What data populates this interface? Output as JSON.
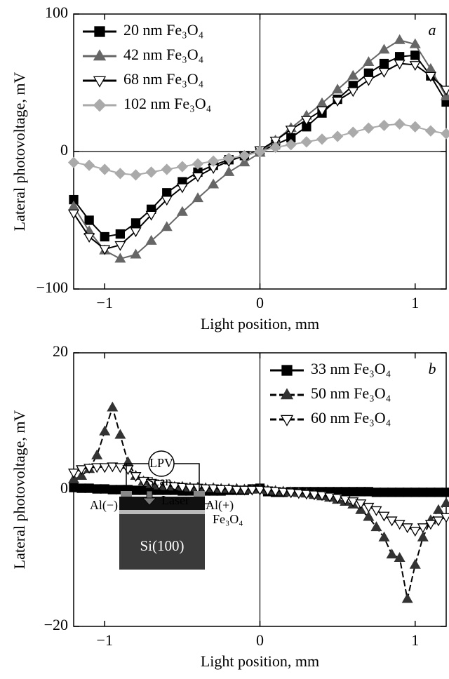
{
  "chart_data": [
    {
      "type": "line",
      "panel_label": "a",
      "xlabel": "Light position, mm",
      "ylabel": "Lateral photovoltage, mV",
      "xlim": [
        -1.2,
        1.2
      ],
      "ylim": [
        -100,
        100
      ],
      "xticks": [
        {
          "value": -1,
          "label": "−1"
        },
        0,
        1
      ],
      "yticks": [
        {
          "value": -100,
          "label": "−100"
        },
        0,
        100
      ],
      "zero_lines": {
        "x": true,
        "y": true
      },
      "legend": "upper left",
      "x": [
        -1.2,
        -1.1,
        -1,
        -0.9,
        -0.8,
        -0.7,
        -0.6,
        -0.5,
        -0.4,
        -0.3,
        -0.2,
        -0.1,
        0,
        0.1,
        0.2,
        0.3,
        0.4,
        0.5,
        0.6,
        0.7,
        0.8,
        0.9,
        1,
        1.1,
        1.2
      ],
      "series": [
        {
          "name": "20 nm Fe₃O₄",
          "color": "#000000",
          "marker": "square",
          "marker_fill": "#000000",
          "dash": "solid",
          "values": [
            -35,
            -50,
            -62,
            -60,
            -52,
            -42,
            -30,
            -22,
            -15,
            -10,
            -6,
            -3,
            0,
            5,
            10,
            18,
            28,
            38,
            48,
            57,
            64,
            69,
            70,
            55,
            36
          ]
        },
        {
          "name": "42 nm Fe₃O₄",
          "color": "#666666",
          "marker": "triangle-up",
          "marker_fill": "#666666",
          "dash": "solid",
          "values": [
            -40,
            -58,
            -72,
            -78,
            -75,
            -65,
            -55,
            -44,
            -34,
            -24,
            -15,
            -8,
            -1,
            8,
            17,
            26,
            35,
            45,
            55,
            65,
            74,
            81,
            78,
            60,
            40
          ]
        },
        {
          "name": "68 nm Fe₃O₄",
          "color": "#000000",
          "marker": "triangle-down",
          "marker_fill": "#ffffff",
          "dash": "solid",
          "values": [
            -45,
            -62,
            -71,
            -68,
            -58,
            -46,
            -35,
            -26,
            -18,
            -12,
            -7,
            -3,
            1,
            8,
            16,
            23,
            30,
            37,
            44,
            52,
            58,
            64,
            63,
            55,
            45
          ]
        },
        {
          "name": "102 nm Fe₃O₄",
          "color": "#aaaaaa",
          "marker": "diamond",
          "marker_fill": "#aaaaaa",
          "dash": "solid",
          "values": [
            -8,
            -10,
            -13,
            -16,
            -17,
            -15,
            -13,
            -11,
            -9,
            -7,
            -5,
            -3,
            0,
            3,
            5,
            7,
            9,
            11,
            14,
            17,
            19,
            20,
            18,
            15,
            13
          ]
        }
      ]
    },
    {
      "type": "line",
      "panel_label": "b",
      "xlabel": "Light position, mm",
      "ylabel": "Lateral photovoltage, mV",
      "xlim": [
        -1.2,
        1.2
      ],
      "ylim": [
        -20,
        20
      ],
      "xticks": [
        {
          "value": -1,
          "label": "−1"
        },
        0,
        1
      ],
      "yticks": [
        {
          "value": -20,
          "label": "−20"
        },
        0,
        20
      ],
      "zero_lines": {
        "x": true,
        "y": false
      },
      "legend": "upper right",
      "x": [
        -1.2,
        -1.15,
        -1.1,
        -1.05,
        -1,
        -0.95,
        -0.9,
        -0.85,
        -0.8,
        -0.75,
        -0.7,
        -0.65,
        -0.6,
        -0.55,
        -0.5,
        -0.45,
        -0.4,
        -0.35,
        -0.3,
        -0.25,
        -0.2,
        -0.15,
        -0.1,
        -0.05,
        0,
        0.05,
        0.1,
        0.15,
        0.2,
        0.25,
        0.3,
        0.35,
        0.4,
        0.45,
        0.5,
        0.55,
        0.6,
        0.65,
        0.7,
        0.75,
        0.8,
        0.85,
        0.9,
        0.95,
        1,
        1.05,
        1.1,
        1.15,
        1.2
      ],
      "series": [
        {
          "name": "33 nm Fe₃O₄",
          "color": "#000000",
          "marker": "square",
          "marker_fill": "#000000",
          "dash": "solid",
          "values": [
            0.3,
            0.2,
            0.2,
            0.1,
            0.1,
            0,
            0,
            0,
            -0.1,
            -0.1,
            -0.1,
            -0.1,
            -0.1,
            -0.1,
            -0.2,
            -0.2,
            -0.2,
            -0.2,
            -0.2,
            -0.2,
            -0.1,
            -0.1,
            -0.1,
            0.1,
            0.2,
            -0.3,
            -0.4,
            -0.4,
            -0.3,
            -0.3,
            -0.3,
            -0.3,
            -0.3,
            -0.3,
            -0.3,
            -0.3,
            -0.3,
            -0.3,
            -0.3,
            -0.4,
            -0.4,
            -0.4,
            -0.4,
            -0.4,
            -0.4,
            -0.4,
            -0.4,
            -0.4,
            -0.4
          ]
        },
        {
          "name": "50 nm Fe₃O₄",
          "color": "#333333",
          "marker": "triangle-up",
          "marker_fill": "#333333",
          "dash": "dashed",
          "values": [
            1.5,
            2,
            3,
            5,
            8.5,
            12,
            8,
            4,
            2,
            1.2,
            0.8,
            0.6,
            0.5,
            0.4,
            0.4,
            0.3,
            0.3,
            0.2,
            0.2,
            0.1,
            0.1,
            0.1,
            0,
            0,
            0,
            -0.1,
            -0.2,
            -0.3,
            -0.4,
            -0.5,
            -0.6,
            -0.8,
            -1,
            -1.2,
            -1.5,
            -1.8,
            -2.2,
            -3,
            -4,
            -5.5,
            -7,
            -9.5,
            -10,
            -16,
            -11,
            -7,
            -4.5,
            -3,
            -2
          ]
        },
        {
          "name": "60 nm Fe₃O₄",
          "color": "#000000",
          "marker": "triangle-down",
          "marker_fill": "#ffffff",
          "dash": "dashed",
          "values": [
            2.5,
            3,
            3.2,
            3.3,
            3.3,
            3.4,
            3.3,
            3,
            2,
            1.3,
            1,
            0.8,
            0.6,
            0.5,
            0.4,
            0.3,
            0.3,
            0.2,
            0.2,
            0.1,
            0.1,
            0,
            0,
            0,
            0,
            -0.1,
            -0.2,
            -0.3,
            -0.4,
            -0.5,
            -0.6,
            -0.7,
            -0.8,
            -1,
            -1.2,
            -1.4,
            -1.7,
            -2,
            -2.5,
            -3,
            -3.8,
            -4.5,
            -5,
            -5.5,
            -6,
            -5.5,
            -5,
            -4.5,
            -4
          ]
        }
      ],
      "inset": {
        "lpv": "LPV",
        "scan": "Scan",
        "laser": "Laser",
        "al_minus": "Al(−)",
        "al_plus": "Al(+)",
        "film": "Fe₃O₄",
        "substrate": "Si(100)"
      }
    }
  ]
}
